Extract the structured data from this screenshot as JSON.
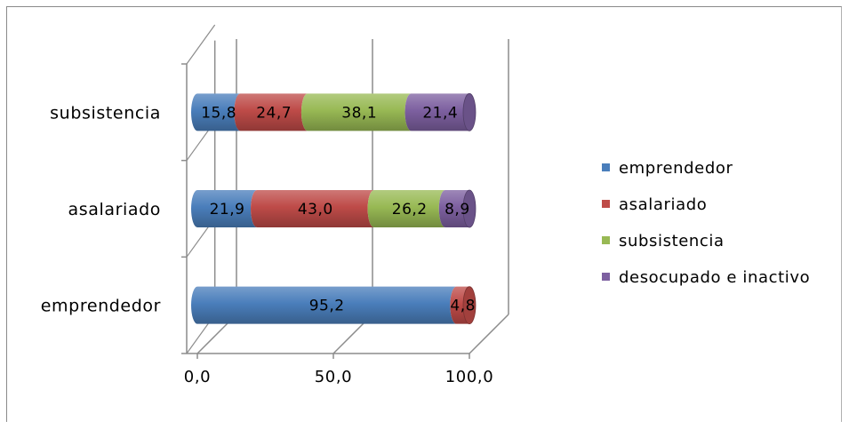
{
  "chart_data": {
    "type": "bar",
    "orientation": "horizontal",
    "stacked": true,
    "three_d": true,
    "categories": [
      "emprendedor",
      "asalariado",
      "subsistencia"
    ],
    "series": [
      {
        "name": "emprendedor",
        "values": [
          95.2,
          21.9,
          15.8
        ],
        "labels": [
          "95,2",
          "21,9",
          "15,8"
        ],
        "color": "#4a7ebb"
      },
      {
        "name": "asalariado",
        "values": [
          4.8,
          43.0,
          24.7
        ],
        "labels": [
          "4,8",
          "43,0",
          "24,7"
        ],
        "color": "#be4b48"
      },
      {
        "name": "subsistencia",
        "values": [
          0,
          26.2,
          38.1
        ],
        "labels": [
          "",
          "26,2",
          "38,1"
        ],
        "color": "#98b954"
      },
      {
        "name": "desocupado e inactivo",
        "values": [
          0,
          8.9,
          21.4
        ],
        "labels": [
          "",
          "8,9",
          "21,4"
        ],
        "color": "#7d60a0"
      }
    ],
    "xlim": [
      0,
      100
    ],
    "xticks": [
      {
        "value": 0,
        "label": "0,0"
      },
      {
        "value": 50,
        "label": "50,0"
      },
      {
        "value": 100,
        "label": "100,0"
      }
    ],
    "grid": true,
    "legend_position": "right"
  }
}
